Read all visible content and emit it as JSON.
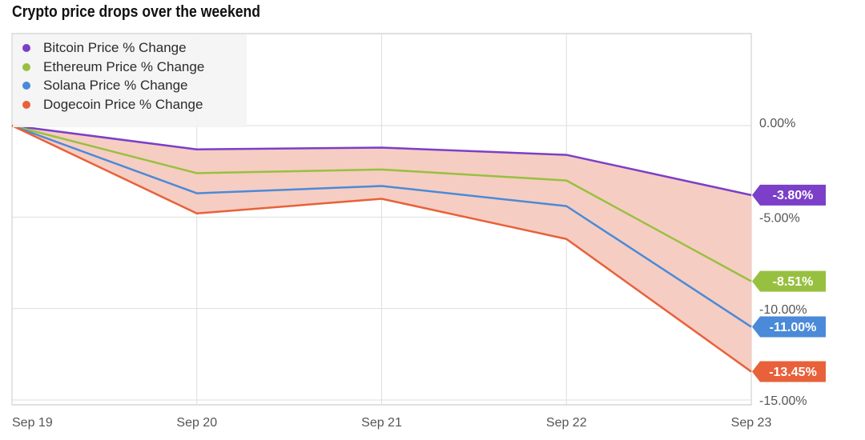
{
  "chart_data": {
    "type": "line",
    "title": "Crypto price drops over the weekend",
    "x": [
      "Sep 19",
      "Sep 20",
      "Sep 21",
      "Sep 22",
      "Sep 23"
    ],
    "series": [
      {
        "name": "Bitcoin Price % Change",
        "color": "#7b3fc8",
        "values": [
          0,
          -1.3,
          -1.2,
          -1.6,
          -3.8
        ],
        "end_label": "-3.80%"
      },
      {
        "name": "Ethereum Price % Change",
        "color": "#98c040",
        "values": [
          0,
          -2.6,
          -2.4,
          -3.0,
          -8.51
        ],
        "end_label": "-8.51%"
      },
      {
        "name": "Solana Price % Change",
        "color": "#4a8ad8",
        "values": [
          0,
          -3.7,
          -3.3,
          -4.4,
          -11.0
        ],
        "end_label": "-11.00%"
      },
      {
        "name": "Dogecoin Price % Change",
        "color": "#e8613a",
        "values": [
          0,
          -4.8,
          -4.0,
          -6.2,
          -13.45
        ],
        "end_label": "-13.45%"
      }
    ],
    "y_ticks": [
      {
        "value": 0,
        "label": "0.00%"
      },
      {
        "value": -5,
        "label": "-5.00%"
      },
      {
        "value": -10,
        "label": "-10.00%"
      },
      {
        "value": -15,
        "label": "-15.00%"
      }
    ],
    "ylim": [
      -15,
      0
    ],
    "y_axis_side": "right",
    "shaded_range": {
      "color": "#f6cdc2",
      "between": [
        "Bitcoin Price % Change",
        "Dogecoin Price % Change"
      ]
    },
    "grid": true,
    "legend_position": "top-left"
  }
}
